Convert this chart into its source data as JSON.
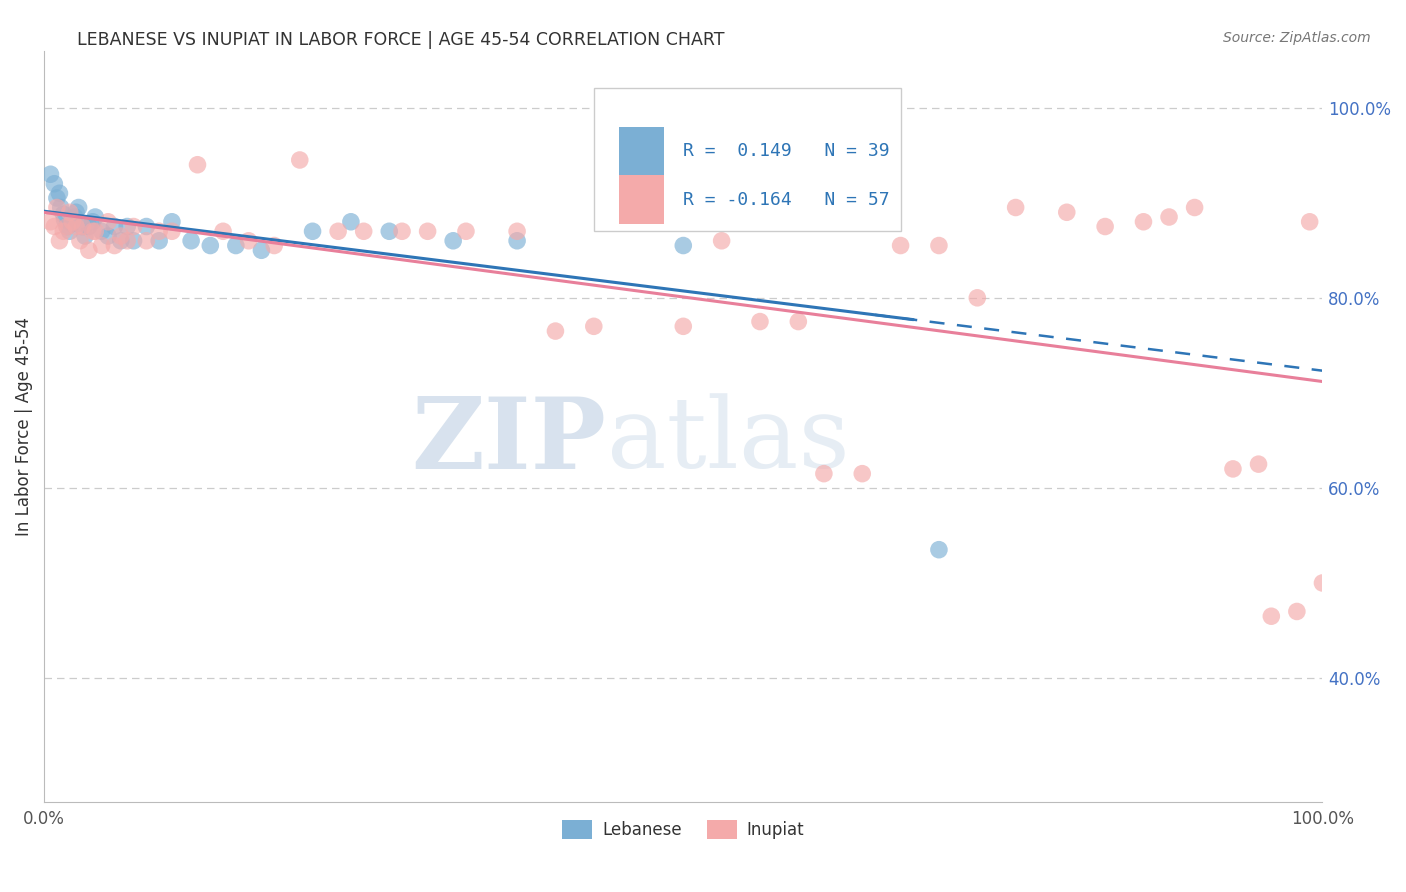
{
  "title": "LEBANESE VS INUPIAT IN LABOR FORCE | AGE 45-54 CORRELATION CHART",
  "source": "Source: ZipAtlas.com",
  "ylabel": "In Labor Force | Age 45-54",
  "xlim": [
    0.0,
    1.0
  ],
  "ylim": [
    0.27,
    1.06
  ],
  "ytick_positions": [
    0.4,
    0.6,
    0.8,
    1.0
  ],
  "ytick_labels": [
    "40.0%",
    "60.0%",
    "80.0%",
    "100.0%"
  ],
  "xtick_positions": [
    0.0,
    1.0
  ],
  "xtick_labels": [
    "0.0%",
    "100.0%"
  ],
  "watermark_zip": "ZIP",
  "watermark_atlas": "atlas",
  "legend_R_blue": "0.149",
  "legend_N_blue": "39",
  "legend_R_pink": "-0.164",
  "legend_N_pink": "57",
  "blue_color": "#7BAFD4",
  "pink_color": "#F4AAAA",
  "trend_blue_solid": "#2E75B6",
  "trend_blue_dash": "#2E75B6",
  "trend_pink": "#E87F9A",
  "blue_scatter_x": [
    0.005,
    0.008,
    0.01,
    0.012,
    0.013,
    0.015,
    0.016,
    0.018,
    0.02,
    0.022,
    0.024,
    0.025,
    0.027,
    0.03,
    0.032,
    0.035,
    0.038,
    0.04,
    0.045,
    0.05,
    0.055,
    0.06,
    0.065,
    0.07,
    0.08,
    0.09,
    0.1,
    0.115,
    0.13,
    0.15,
    0.17,
    0.21,
    0.24,
    0.27,
    0.32,
    0.37,
    0.5,
    0.65,
    0.7
  ],
  "blue_scatter_y": [
    0.93,
    0.92,
    0.905,
    0.91,
    0.895,
    0.888,
    0.882,
    0.875,
    0.87,
    0.878,
    0.885,
    0.89,
    0.895,
    0.875,
    0.865,
    0.875,
    0.88,
    0.885,
    0.87,
    0.865,
    0.875,
    0.86,
    0.875,
    0.86,
    0.875,
    0.86,
    0.88,
    0.86,
    0.855,
    0.855,
    0.85,
    0.87,
    0.88,
    0.87,
    0.86,
    0.86,
    0.855,
    0.97,
    0.535
  ],
  "pink_scatter_x": [
    0.005,
    0.008,
    0.01,
    0.012,
    0.015,
    0.018,
    0.02,
    0.022,
    0.025,
    0.028,
    0.03,
    0.035,
    0.038,
    0.04,
    0.045,
    0.05,
    0.055,
    0.06,
    0.065,
    0.07,
    0.08,
    0.09,
    0.1,
    0.12,
    0.14,
    0.16,
    0.18,
    0.2,
    0.23,
    0.25,
    0.28,
    0.3,
    0.33,
    0.37,
    0.4,
    0.43,
    0.5,
    0.53,
    0.56,
    0.59,
    0.61,
    0.64,
    0.67,
    0.7,
    0.73,
    0.76,
    0.8,
    0.83,
    0.86,
    0.88,
    0.9,
    0.93,
    0.95,
    0.96,
    0.98,
    0.99,
    1.0
  ],
  "pink_scatter_y": [
    0.88,
    0.875,
    0.895,
    0.86,
    0.87,
    0.875,
    0.89,
    0.88,
    0.875,
    0.86,
    0.875,
    0.85,
    0.87,
    0.87,
    0.855,
    0.88,
    0.855,
    0.865,
    0.86,
    0.875,
    0.86,
    0.87,
    0.87,
    0.94,
    0.87,
    0.86,
    0.855,
    0.945,
    0.87,
    0.87,
    0.87,
    0.87,
    0.87,
    0.87,
    0.765,
    0.77,
    0.77,
    0.86,
    0.775,
    0.775,
    0.615,
    0.615,
    0.855,
    0.855,
    0.8,
    0.895,
    0.89,
    0.875,
    0.88,
    0.885,
    0.895,
    0.62,
    0.625,
    0.465,
    0.47,
    0.88,
    0.5
  ]
}
